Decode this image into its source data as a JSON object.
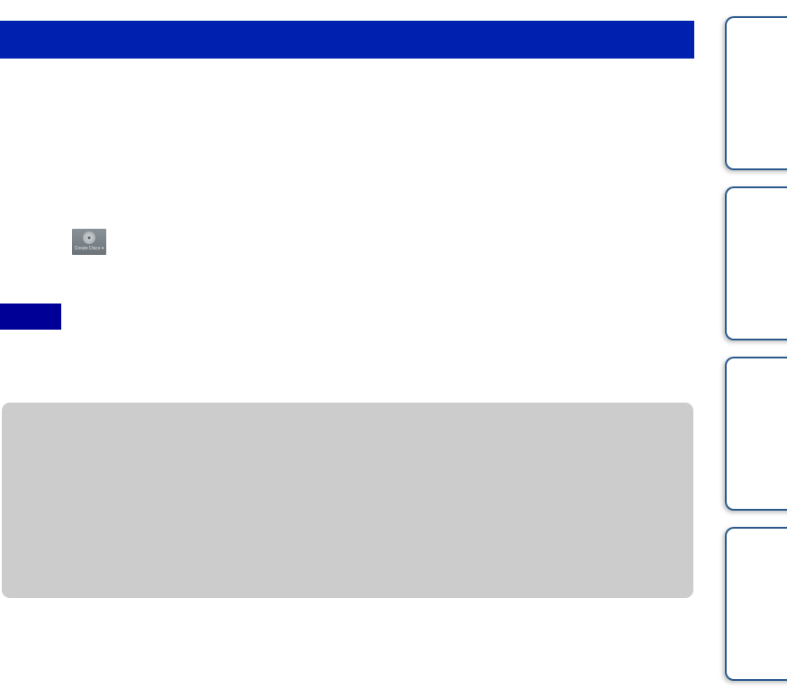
{
  "header": {
    "color": "#0020b0"
  },
  "toolbar_icon": {
    "icon": "create-discs-icon",
    "label": "Create Discs ▾"
  },
  "note": {
    "badge_color": "#000096",
    "box_color": "#cccccc"
  },
  "side_tabs": [
    {
      "id": 1
    },
    {
      "id": 2
    },
    {
      "id": 3
    },
    {
      "id": 4
    }
  ]
}
